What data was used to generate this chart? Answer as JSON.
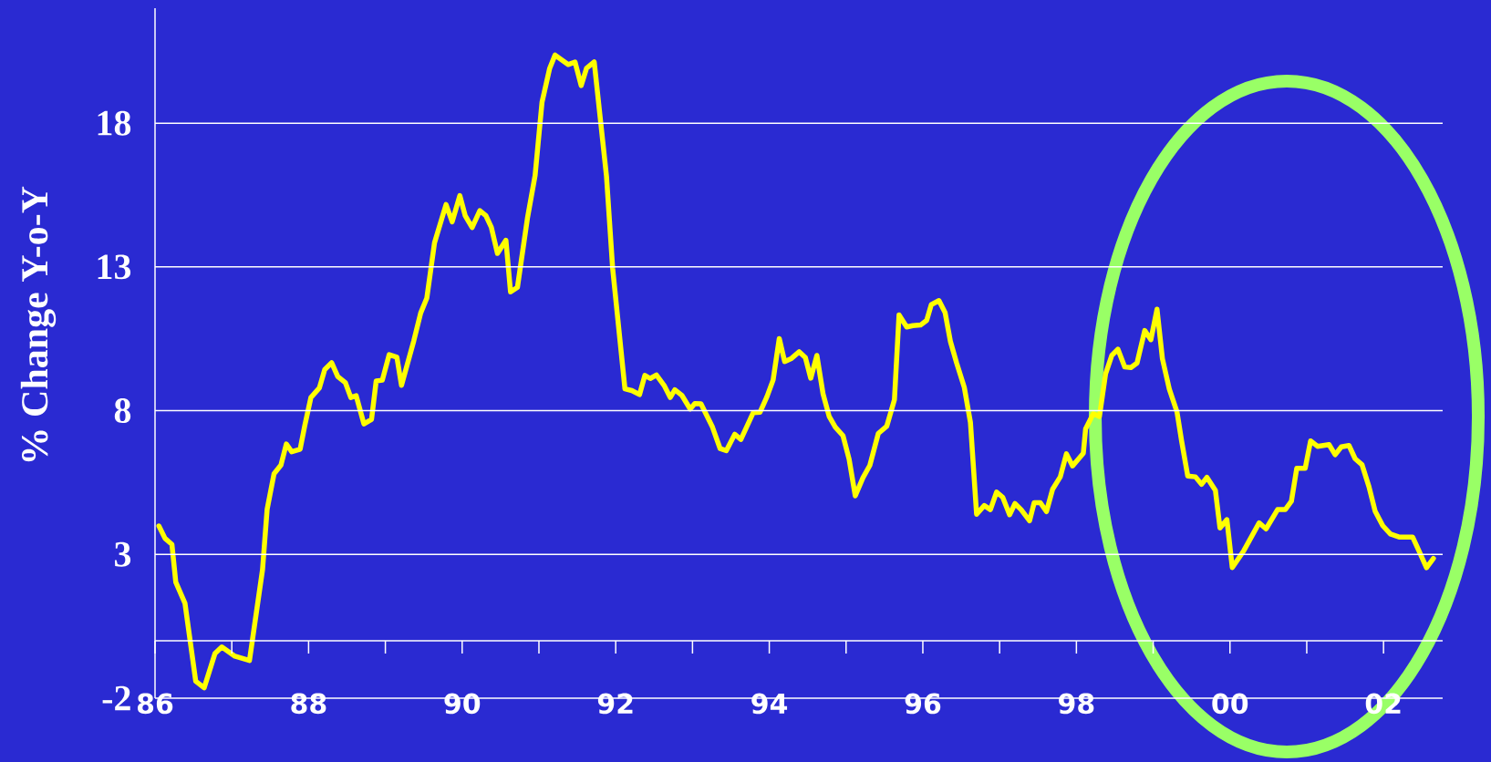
{
  "chart_data": {
    "type": "line",
    "ylabel": "% Change Y-o-Y",
    "x": [
      1986.05,
      1986.13,
      1986.22,
      1986.27,
      1986.39,
      1986.53,
      1986.64,
      1986.78,
      1986.87,
      1987.04,
      1987.23,
      1987.4,
      1987.46,
      1987.55,
      1987.64,
      1987.71,
      1987.78,
      1987.89,
      1987.95,
      1988.03,
      1988.14,
      1988.21,
      1988.3,
      1988.38,
      1988.48,
      1988.55,
      1988.62,
      1988.72,
      1988.82,
      1988.88,
      1988.96,
      1989.05,
      1989.15,
      1989.21,
      1989.37,
      1989.46,
      1989.54,
      1989.64,
      1989.79,
      1989.87,
      1989.97,
      1990.04,
      1990.13,
      1990.23,
      1990.31,
      1990.38,
      1990.46,
      1990.57,
      1990.63,
      1990.72,
      1990.85,
      1990.95,
      1991.04,
      1991.14,
      1991.21,
      1991.38,
      1991.47,
      1991.55,
      1991.62,
      1991.72,
      1991.88,
      1991.96,
      1992.12,
      1992.21,
      1992.31,
      1992.38,
      1992.45,
      1992.53,
      1992.63,
      1992.71,
      1992.77,
      1992.86,
      1992.97,
      1993.03,
      1993.11,
      1993.26,
      1993.36,
      1993.44,
      1993.55,
      1993.63,
      1993.79,
      1993.88,
      1993.97,
      1994.05,
      1994.13,
      1994.2,
      1994.29,
      1994.39,
      1994.47,
      1994.54,
      1994.62,
      1994.7,
      1994.78,
      1994.86,
      1994.96,
      1995.04,
      1995.12,
      1995.22,
      1995.31,
      1995.42,
      1995.53,
      1995.63,
      1995.69,
      1995.79,
      1995.87,
      1995.97,
      1996.05,
      1996.11,
      1996.21,
      1996.29,
      1996.36,
      1996.44,
      1996.54,
      1996.62,
      1996.7,
      1996.8,
      1996.88,
      1996.96,
      1997.04,
      1997.13,
      1997.2,
      1997.28,
      1997.39,
      1997.45,
      1997.53,
      1997.61,
      1997.69,
      1997.79,
      1997.87,
      1997.95,
      1998.03,
      1998.09,
      1998.12,
      1998.22,
      1998.3,
      1998.38,
      1998.46,
      1998.54,
      1998.63,
      1998.71,
      1998.79,
      1998.89,
      1998.97,
      1999.05,
      1999.12,
      1999.21,
      1999.31,
      1999.37,
      1999.45,
      1999.55,
      1999.63,
      1999.7,
      1999.81,
      1999.87,
      1999.96,
      2000.03,
      2000.18,
      2000.38,
      2000.47,
      2000.62,
      2000.72,
      2000.8,
      2000.87,
      2000.98,
      2001.05,
      2001.14,
      2001.29,
      2001.37,
      2001.45,
      2001.55,
      2001.63,
      2001.72,
      2001.81,
      2001.89,
      2001.99,
      2002.09,
      2002.21,
      2002.38,
      2002.46,
      2002.56,
      2002.65
    ],
    "series": [
      {
        "color": "#ffff00",
        "values": [
          3.99,
          3.56,
          3.35,
          2.04,
          1.3,
          -1.41,
          -1.64,
          -0.45,
          -0.22,
          -0.54,
          -0.69,
          2.47,
          4.57,
          5.81,
          6.11,
          6.84,
          6.57,
          6.66,
          7.48,
          8.46,
          8.79,
          9.43,
          9.67,
          9.19,
          8.97,
          8.46,
          8.52,
          7.54,
          7.7,
          9.03,
          9.06,
          9.95,
          9.86,
          8.88,
          10.43,
          11.4,
          11.92,
          13.84,
          15.17,
          14.57,
          15.48,
          14.78,
          14.37,
          14.96,
          14.78,
          14.38,
          13.47,
          13.93,
          12.13,
          12.29,
          14.69,
          16.18,
          18.73,
          19.91,
          20.37,
          20.04,
          20.13,
          19.31,
          19.91,
          20.13,
          16.15,
          12.95,
          8.76,
          8.7,
          8.56,
          9.23,
          9.12,
          9.24,
          8.88,
          8.46,
          8.73,
          8.54,
          8.06,
          8.25,
          8.24,
          7.43,
          6.68,
          6.61,
          7.18,
          7.0,
          7.93,
          7.95,
          8.49,
          9.07,
          10.51,
          9.71,
          9.82,
          10.05,
          9.85,
          9.13,
          9.92,
          8.59,
          7.8,
          7.43,
          7.13,
          6.31,
          5.04,
          5.67,
          6.1,
          7.21,
          7.46,
          8.38,
          11.33,
          10.91,
          10.96,
          10.98,
          11.14,
          11.69,
          11.83,
          11.41,
          10.4,
          9.66,
          8.81,
          7.59,
          4.4,
          4.7,
          4.56,
          5.17,
          4.99,
          4.38,
          4.77,
          4.56,
          4.17,
          4.8,
          4.8,
          4.49,
          5.27,
          5.7,
          6.5,
          6.08,
          6.33,
          6.52,
          7.37,
          7.9,
          7.8,
          9.28,
          9.92,
          10.14,
          9.52,
          9.5,
          9.66,
          10.79,
          10.47,
          11.53,
          9.81,
          8.75,
          7.96,
          6.95,
          5.73,
          5.7,
          5.44,
          5.68,
          5.23,
          3.92,
          4.21,
          2.54,
          3.13,
          4.1,
          3.89,
          4.56,
          4.56,
          4.85,
          6.0,
          6.0,
          6.95,
          6.76,
          6.82,
          6.47,
          6.74,
          6.79,
          6.33,
          6.12,
          5.36,
          4.51,
          4.0,
          3.71,
          3.6,
          3.6,
          3.13,
          2.54,
          2.86
        ]
      }
    ],
    "xlim": [
      1986,
      2002.77
    ],
    "ylim": [
      -2,
      22
    ],
    "xticks": [
      {
        "value": 1986,
        "label": "86"
      },
      {
        "value": 1987,
        "label": null
      },
      {
        "value": 1988,
        "label": "88"
      },
      {
        "value": 1989,
        "label": null
      },
      {
        "value": 1990,
        "label": "90"
      },
      {
        "value": 1991,
        "label": null
      },
      {
        "value": 1992,
        "label": "92"
      },
      {
        "value": 1993,
        "label": null
      },
      {
        "value": 1994,
        "label": "94"
      },
      {
        "value": 1995,
        "label": null
      },
      {
        "value": 1996,
        "label": "96"
      },
      {
        "value": 1997,
        "label": null
      },
      {
        "value": 1998,
        "label": "98"
      },
      {
        "value": 1999,
        "label": null
      },
      {
        "value": 2000,
        "label": "00"
      },
      {
        "value": 2001,
        "label": null
      },
      {
        "value": 2002,
        "label": "02"
      }
    ],
    "yticks": [
      -2,
      3,
      8,
      13,
      18
    ],
    "grid": "y",
    "line_style": "solid"
  }
}
